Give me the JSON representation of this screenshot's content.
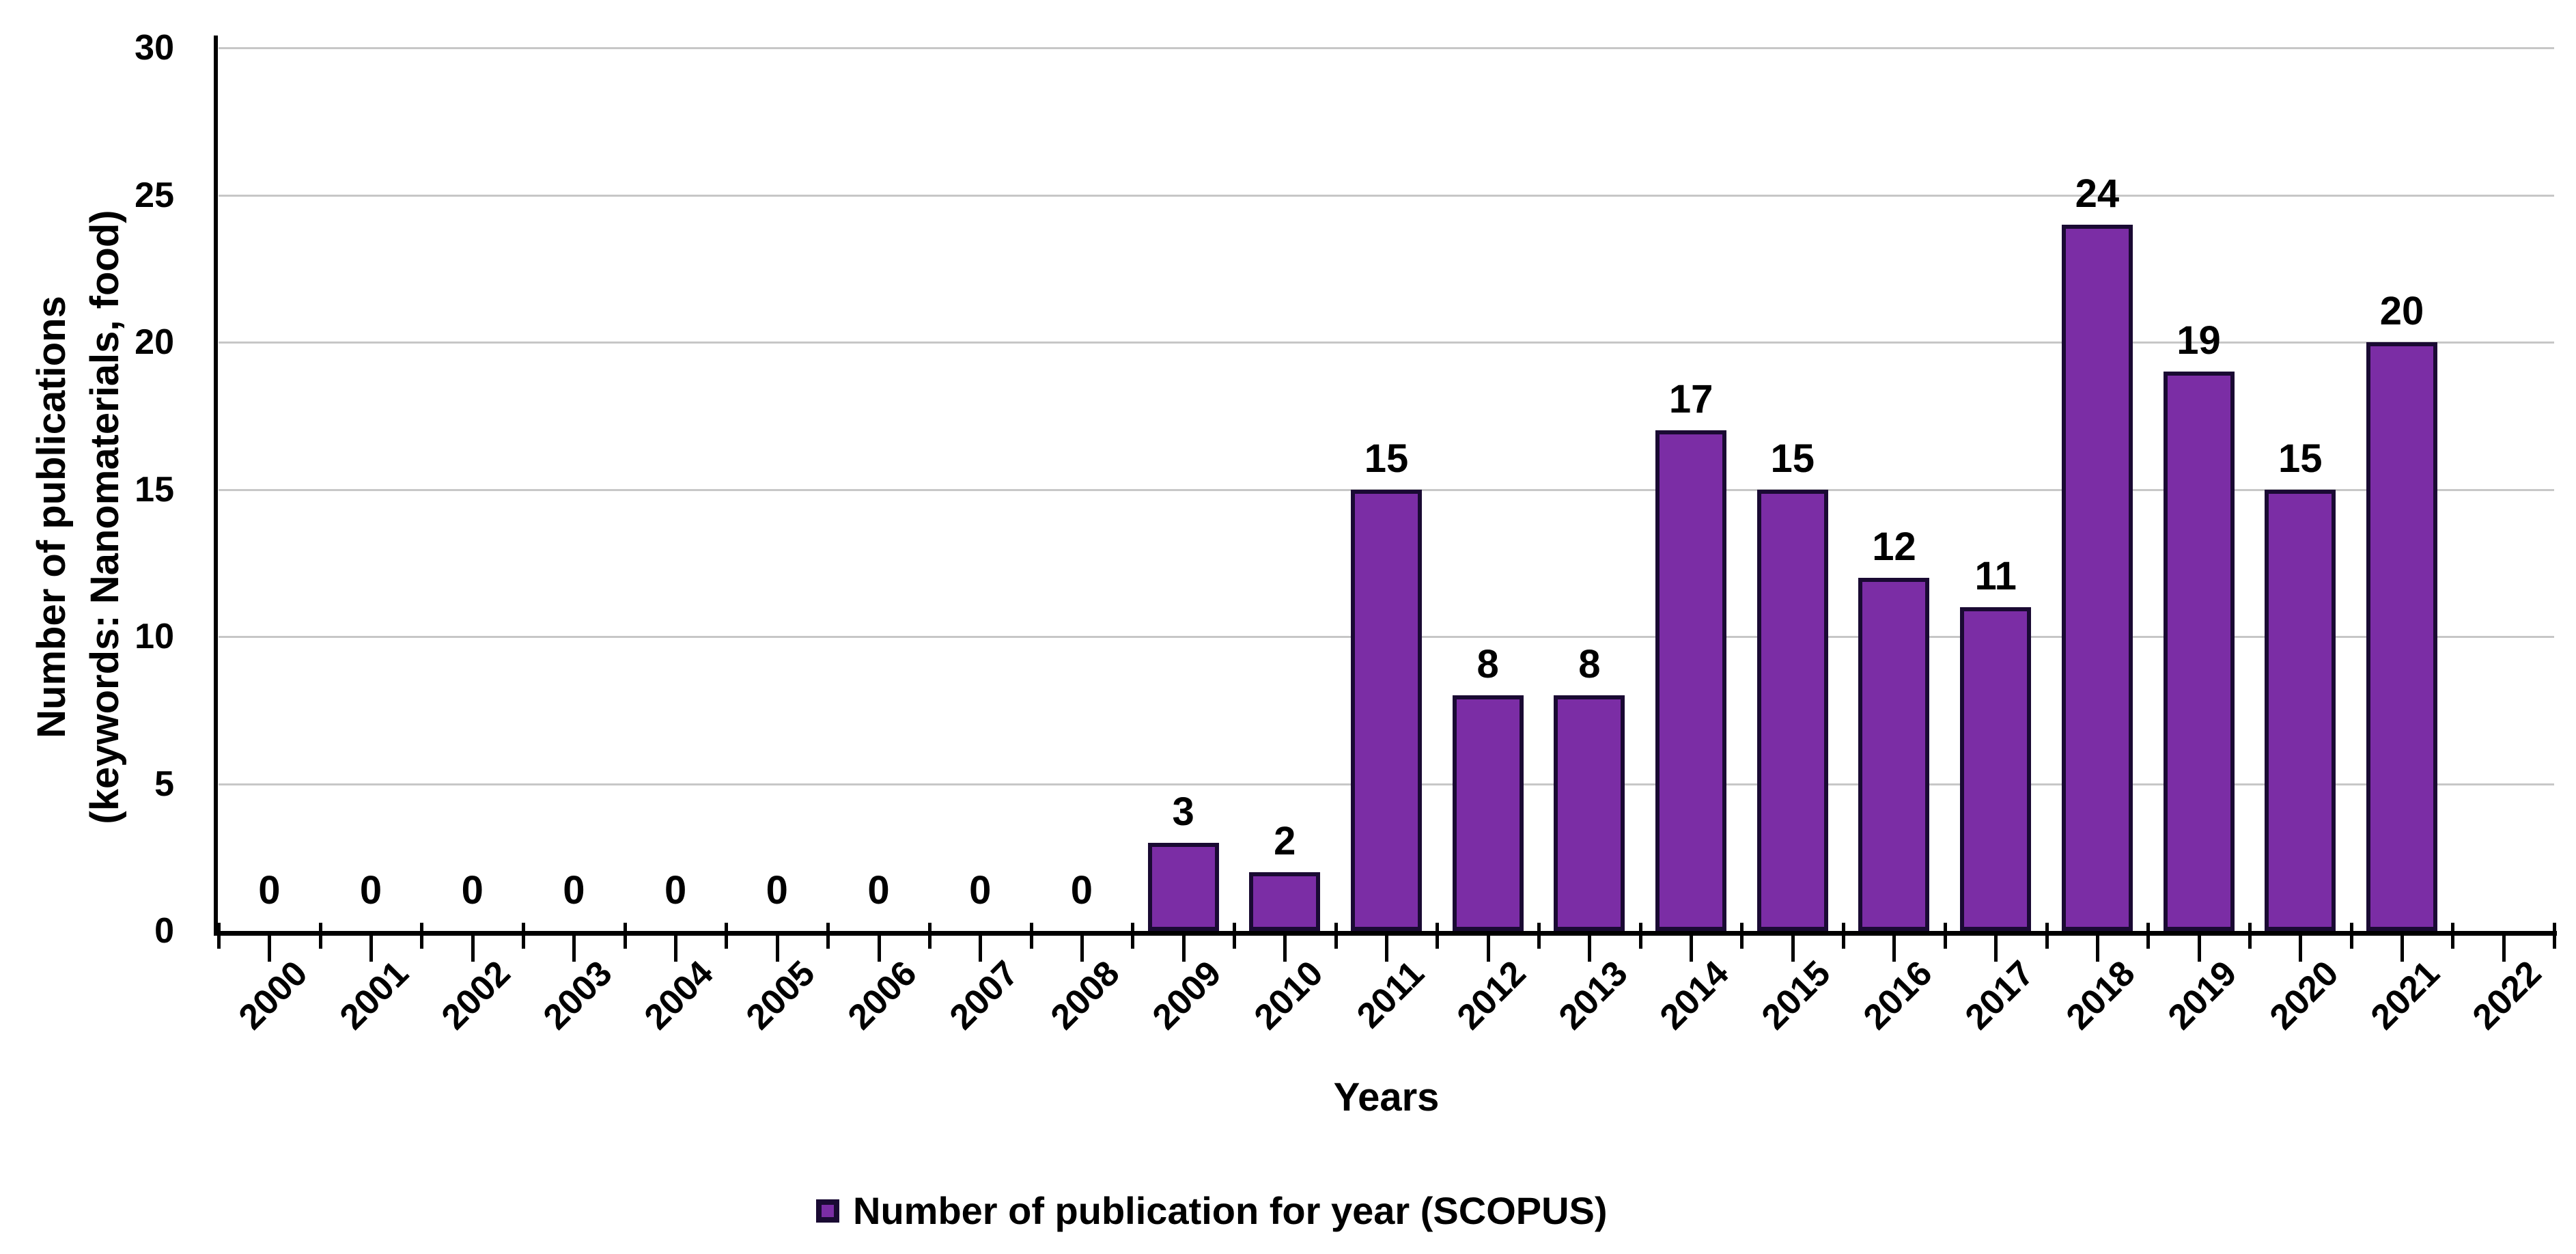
{
  "chart_data": {
    "type": "bar",
    "title": "",
    "categories": [
      "2000",
      "2001",
      "2002",
      "2003",
      "2004",
      "2005",
      "2006",
      "2007",
      "2008",
      "2009",
      "2010",
      "2011",
      "2012",
      "2013",
      "2014",
      "2015",
      "2016",
      "2017",
      "2018",
      "2019",
      "2020",
      "2021",
      "2022"
    ],
    "values": [
      0,
      0,
      0,
      0,
      0,
      0,
      0,
      0,
      0,
      3,
      2,
      15,
      8,
      8,
      17,
      15,
      12,
      11,
      24,
      19,
      15,
      20,
      null
    ],
    "bar_labels": [
      "0",
      "0",
      "0",
      "0",
      "0",
      "0",
      "0",
      "0",
      "0",
      "3",
      "2",
      "15",
      "8",
      "8",
      "17",
      "15",
      "12",
      "11",
      "24",
      "19",
      "15",
      "20",
      ""
    ],
    "xlabel": "Years",
    "ylabel_line1": "Number of publications",
    "ylabel_line2": "(keywords: Nanomaterials, food)",
    "y_ticks": [
      0,
      5,
      10,
      15,
      20,
      25,
      30
    ],
    "ylim": [
      0,
      30
    ],
    "grid": "horizontal-light-gray",
    "legend": {
      "label": "Number of publication for year (SCOPUS)",
      "position": "bottom-center"
    },
    "colors": {
      "bar_fill": "#7B2DA5",
      "bar_border": "#1A0A33",
      "gridline": "#C7C7C7",
      "axis": "#000000",
      "text": "#000000"
    }
  }
}
